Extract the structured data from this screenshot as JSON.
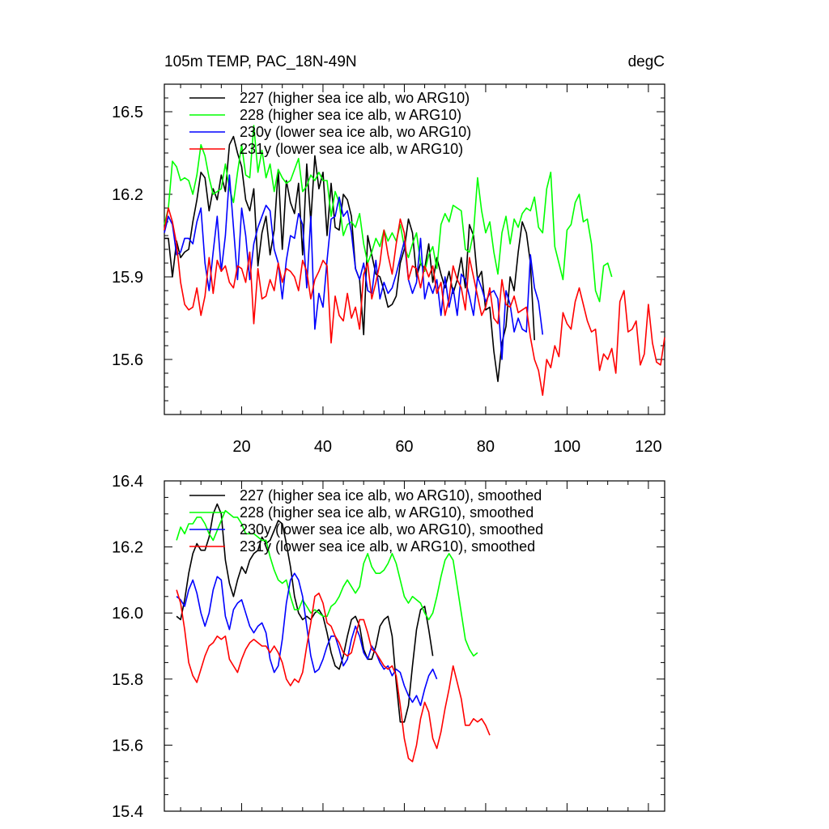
{
  "chart_data": [
    {
      "type": "line",
      "title_left": "105m TEMP, PAC_18N-49N",
      "title_right": "degC",
      "xlim": [
        1,
        124
      ],
      "ylim": [
        15.4,
        16.6
      ],
      "x_ticks": [
        20,
        40,
        60,
        80,
        100,
        120
      ],
      "x_tick_labels": [
        "20",
        "40",
        "60",
        "80",
        "100",
        "120"
      ],
      "x_minor_step": 5,
      "y_ticks": [
        15.6,
        15.9,
        16.2,
        16.5
      ],
      "y_tick_labels": [
        "15.6",
        "15.9",
        "16.2",
        "16.5"
      ],
      "y_minor_step": 0.05,
      "legend_position": "top-left",
      "grid": false,
      "series": [
        {
          "name": "227 (higher sea ice alb, wo ARG10)",
          "color": "#000000",
          "x_start": 1,
          "values": [
            16.04,
            16.04,
            15.9,
            16.03,
            15.97,
            15.99,
            16.0,
            16.1,
            16.18,
            16.28,
            16.26,
            16.14,
            16.22,
            16.18,
            16.27,
            16.21,
            16.38,
            16.41,
            16.35,
            16.3,
            16.18,
            16.14,
            16.22,
            15.94,
            16.06,
            16.12,
            15.98,
            16.07,
            16.29,
            16.0,
            16.25,
            16.17,
            16.13,
            16.24,
            15.98,
            16.31,
            16.1,
            16.34,
            16.22,
            16.28,
            16.05,
            16.24,
            16.08,
            16.07,
            16.2,
            16.18,
            16.12,
            15.93,
            15.89,
            15.69,
            16.05,
            15.98,
            15.91,
            15.9,
            15.85,
            15.79,
            15.8,
            15.83,
            15.95,
            16.0,
            16.11,
            16.06,
            15.9,
            15.95,
            15.93,
            16.02,
            15.88,
            15.97,
            15.91,
            15.86,
            15.92,
            15.84,
            15.89,
            15.97,
            15.86,
            16.09,
            16.05,
            15.89,
            15.92,
            15.78,
            15.79,
            15.63,
            15.52,
            15.66,
            15.72,
            15.9,
            15.85,
            15.99,
            16.1,
            16.06,
            15.95,
            15.67
          ]
        },
        {
          "name": "228 (higher sea ice alb, w ARG10)",
          "color": "#00ff00",
          "x_start": 1,
          "values": [
            16.09,
            16.15,
            16.32,
            16.3,
            16.25,
            16.26,
            16.25,
            16.2,
            16.27,
            16.38,
            16.34,
            16.26,
            16.2,
            16.21,
            16.22,
            16.31,
            16.22,
            16.17,
            16.28,
            16.38,
            16.27,
            16.26,
            16.45,
            16.28,
            16.36,
            16.26,
            16.31,
            16.21,
            16.29,
            16.26,
            16.24,
            16.25,
            16.29,
            16.33,
            16.21,
            16.23,
            16.27,
            16.25,
            16.28,
            16.25,
            16.25,
            16.12,
            16.21,
            16.17,
            16.05,
            16.09,
            16.1,
            16.08,
            16.13,
            16.02,
            15.95,
            15.99,
            16.04,
            16.01,
            16.07,
            16.03,
            16.06,
            16.03,
            16.09,
            16.01,
            15.97,
            16.02,
            16.06,
            15.95,
            15.92,
            15.98,
            16.01,
            15.93,
            16.09,
            16.13,
            16.1,
            16.16,
            16.15,
            16.14,
            16.0,
            15.99,
            16.06,
            16.26,
            16.14,
            16.06,
            16.1,
            15.99,
            15.91,
            16.06,
            16.12,
            16.02,
            16.11,
            16.08,
            16.13,
            16.15,
            16.14,
            16.19,
            16.08,
            16.06,
            16.22,
            16.28,
            16.01,
            15.95,
            15.89,
            16.07,
            16.09,
            16.17,
            16.2,
            16.1,
            16.11,
            16.02,
            15.85,
            15.81,
            15.94,
            15.95,
            15.9
          ]
        },
        {
          "name": "230y (lower sea ice alb, wo ARG10)",
          "color": "#0000ff",
          "x_start": 1,
          "values": [
            16.06,
            16.12,
            16.09,
            15.98,
            15.99,
            16.04,
            16.04,
            16.02,
            16.1,
            16.15,
            15.95,
            15.85,
            15.99,
            16.12,
            15.92,
            16.05,
            16.27,
            16.08,
            15.89,
            16.15,
            16.05,
            15.89,
            16.02,
            16.08,
            16.12,
            16.16,
            16.14,
            16.0,
            15.95,
            15.82,
            15.96,
            16.05,
            16.04,
            16.13,
            16.09,
            15.86,
            16.12,
            15.71,
            15.84,
            15.79,
            15.96,
            16.11,
            16.12,
            16.19,
            16.12,
            16.14,
            16.06,
            15.93,
            15.89,
            15.95,
            15.85,
            15.84,
            15.96,
            15.82,
            15.88,
            15.84,
            15.86,
            15.91,
            15.97,
            16.03,
            15.89,
            15.84,
            15.88,
            16.04,
            15.82,
            15.88,
            15.84,
            15.89,
            15.76,
            15.9,
            15.79,
            15.86,
            15.76,
            15.91,
            15.89,
            15.83,
            15.76,
            15.9,
            15.86,
            15.81,
            15.84,
            15.85,
            15.82,
            15.6,
            15.85,
            15.8,
            15.7,
            15.75,
            15.71,
            15.7,
            15.98,
            15.86,
            15.81,
            15.69
          ]
        },
        {
          "name": "231y (lower sea ice alb, w ARG10)",
          "color": "#ff0000",
          "x_start": 1,
          "values": [
            16.07,
            16.15,
            16.1,
            16.02,
            15.88,
            15.8,
            15.78,
            15.79,
            15.86,
            15.76,
            15.83,
            15.97,
            15.84,
            15.96,
            15.92,
            15.94,
            15.88,
            15.86,
            15.94,
            15.93,
            15.88,
            15.99,
            15.73,
            15.93,
            15.82,
            15.83,
            15.89,
            15.85,
            15.95,
            15.88,
            15.93,
            15.92,
            15.9,
            15.85,
            15.96,
            15.92,
            15.82,
            15.89,
            15.92,
            15.96,
            15.94,
            15.66,
            15.83,
            15.76,
            15.74,
            15.84,
            15.75,
            15.79,
            15.71,
            15.91,
            15.95,
            15.82,
            15.88,
            15.95,
            16.07,
            15.98,
            15.91,
            16.02,
            16.11,
            16.06,
            15.89,
            15.94,
            15.93,
            15.86,
            15.94,
            15.9,
            15.94,
            15.84,
            15.88,
            15.76,
            15.82,
            15.94,
            15.89,
            15.86,
            15.78,
            15.97,
            15.9,
            15.83,
            15.76,
            15.79,
            15.86,
            15.75,
            15.73,
            15.89,
            15.8,
            15.79,
            15.83,
            15.77,
            15.78,
            15.79,
            15.68,
            15.6,
            15.56,
            15.47,
            15.6,
            15.57,
            15.65,
            15.61,
            15.77,
            15.73,
            15.71,
            15.81,
            15.86,
            15.8,
            15.74,
            15.7,
            15.71,
            15.56,
            15.62,
            15.6,
            15.64,
            15.55,
            15.81,
            15.85,
            15.7,
            15.71,
            15.74,
            15.58,
            15.62,
            15.8,
            15.66,
            15.59,
            15.58,
            15.68
          ]
        }
      ]
    },
    {
      "type": "line",
      "xlim": [
        1,
        124
      ],
      "ylim": [
        15.4,
        16.4
      ],
      "x_ticks": [
        20,
        40,
        60,
        80,
        100,
        120
      ],
      "x_tick_labels": [],
      "x_minor_step": 5,
      "y_ticks": [
        15.4,
        15.6,
        15.8,
        16.0,
        16.2,
        16.4
      ],
      "y_tick_labels": [
        "15.4",
        "15.6",
        "15.8",
        "16.0",
        "16.2",
        "16.4"
      ],
      "y_minor_step": 0.05,
      "legend_position": "top-left",
      "grid": false,
      "series": [
        {
          "name": "227 (higher sea ice alb, wo ARG10), smoothed",
          "color": "#000000",
          "x_start": 4,
          "values": [
            15.99,
            15.98,
            16.04,
            16.12,
            16.18,
            16.21,
            16.19,
            16.19,
            16.23,
            16.3,
            16.33,
            16.3,
            16.16,
            16.09,
            16.05,
            16.1,
            16.14,
            16.12,
            16.16,
            16.18,
            16.19,
            16.23,
            16.21,
            16.22,
            16.25,
            16.28,
            16.27,
            16.21,
            16.14,
            16.05,
            16.0,
            15.98,
            15.99,
            15.98,
            16.0,
            16.01,
            15.99,
            15.94,
            15.88,
            15.84,
            15.83,
            15.87,
            15.93,
            15.98,
            15.99,
            15.96,
            15.89,
            15.86,
            15.86,
            15.9,
            15.96,
            15.98,
            15.99,
            15.93,
            15.79,
            15.67,
            15.67,
            15.72,
            15.84,
            15.95,
            16.01,
            16.02,
            15.95,
            15.87
          ]
        },
        {
          "name": "228 (higher sea ice alb, w ARG10), smoothed",
          "color": "#00ff00",
          "x_start": 4,
          "values": [
            16.22,
            16.26,
            16.24,
            16.27,
            16.27,
            16.29,
            16.29,
            16.27,
            16.24,
            16.22,
            16.25,
            16.28,
            16.31,
            16.3,
            16.29,
            16.29,
            16.27,
            16.24,
            16.24,
            16.24,
            16.23,
            16.22,
            16.22,
            16.17,
            16.13,
            16.1,
            16.09,
            16.1,
            16.05,
            16.01,
            16.01,
            16.04,
            16.02,
            16.0,
            16.01,
            16.0,
            15.99,
            15.99,
            16.02,
            16.03,
            16.05,
            16.08,
            16.1,
            16.08,
            16.06,
            16.08,
            16.15,
            16.18,
            16.14,
            16.12,
            16.12,
            16.13,
            16.15,
            16.18,
            16.15,
            16.1,
            16.05,
            16.03,
            16.05,
            16.04,
            16.03,
            16.0,
            15.98,
            16.0,
            16.05,
            16.11,
            16.16,
            16.18,
            16.16,
            16.08,
            16.0,
            15.92,
            15.89,
            15.87,
            15.88
          ]
        },
        {
          "name": "230y (lower sea ice alb, wo ARG10), smoothed",
          "color": "#0000ff",
          "x_start": 4,
          "values": [
            16.05,
            16.04,
            16.02,
            16.07,
            16.1,
            16.06,
            16.0,
            15.96,
            16.0,
            16.07,
            16.11,
            16.1,
            15.99,
            15.95,
            16.01,
            16.03,
            16.04,
            16.0,
            15.96,
            15.94,
            15.96,
            15.97,
            15.94,
            15.86,
            15.82,
            15.84,
            15.92,
            16.03,
            16.1,
            16.12,
            16.1,
            16.05,
            15.96,
            15.87,
            15.82,
            15.83,
            15.86,
            15.9,
            15.93,
            15.93,
            15.89,
            15.84,
            15.86,
            15.92,
            15.96,
            15.93,
            15.88,
            15.86,
            15.9,
            15.88,
            15.85,
            15.83,
            15.84,
            15.81,
            15.83,
            15.82,
            15.78,
            15.75,
            15.73,
            15.75,
            15.72,
            15.77,
            15.81,
            15.83,
            15.8
          ]
        },
        {
          "name": "231y (lower sea ice alb, w ARG10), smoothed",
          "color": "#ff0000",
          "x_start": 4,
          "values": [
            16.07,
            16.03,
            15.95,
            15.85,
            15.81,
            15.79,
            15.83,
            15.87,
            15.9,
            15.91,
            15.93,
            15.92,
            15.93,
            15.86,
            15.84,
            15.82,
            15.86,
            15.89,
            15.91,
            15.92,
            15.91,
            15.9,
            15.9,
            15.88,
            15.9,
            15.88,
            15.85,
            15.8,
            15.78,
            15.8,
            15.79,
            15.82,
            15.9,
            15.97,
            16.05,
            16.06,
            16.03,
            15.97,
            15.96,
            15.93,
            15.91,
            15.88,
            15.87,
            15.88,
            15.93,
            15.98,
            15.98,
            15.94,
            15.89,
            15.88,
            15.86,
            15.84,
            15.83,
            15.84,
            15.81,
            15.72,
            15.62,
            15.56,
            15.55,
            15.6,
            15.68,
            15.73,
            15.7,
            15.62,
            15.59,
            15.64,
            15.71,
            15.77,
            15.84,
            15.79,
            15.74,
            15.66,
            15.66,
            15.68,
            15.67,
            15.68,
            15.66,
            15.63
          ]
        }
      ]
    }
  ]
}
